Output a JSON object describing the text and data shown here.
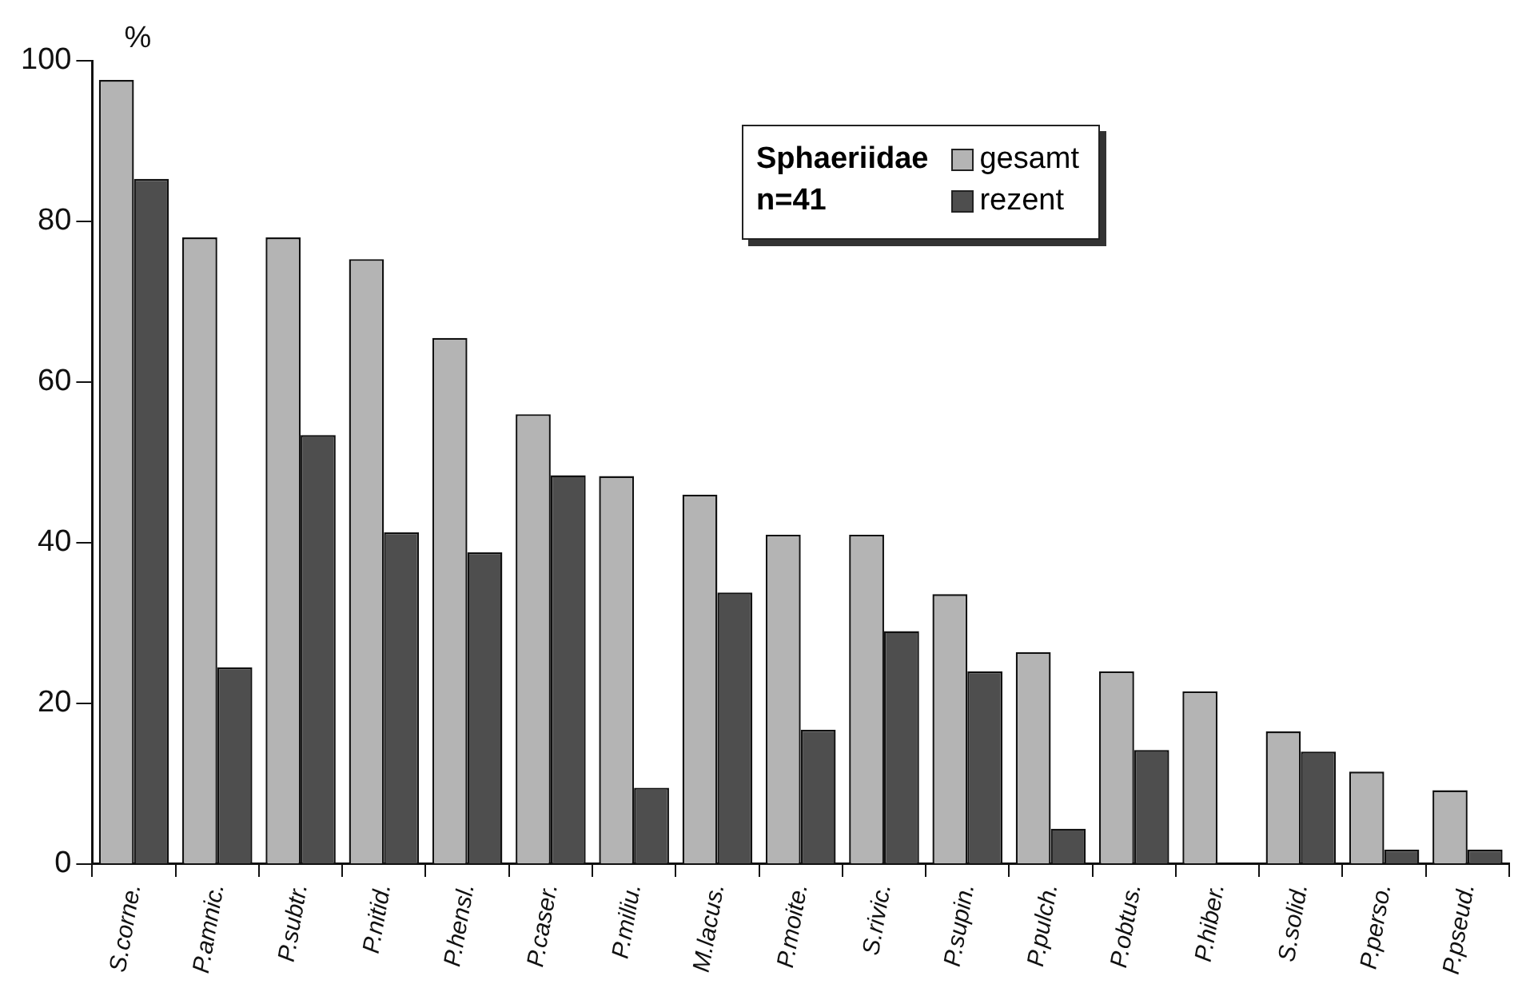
{
  "chart_data": {
    "type": "bar",
    "ylabel": "%",
    "legend_title": "Sphaeriidae\nn=41",
    "categories": [
      "S.corne.",
      "P.amnic.",
      "P.subtr.",
      "P.nitid.",
      "P.hensl.",
      "P.caser.",
      "P.miliu.",
      "M.lacus.",
      "P.moite.",
      "S.rivic.",
      "P.supin.",
      "P.pulch.",
      "P.obtus.",
      "P.hiber.",
      "S.solid.",
      "P.perso.",
      "P.pseud."
    ],
    "series": [
      {
        "name": "gesamt",
        "color": "#b4b4b4",
        "values": [
          97.6,
          78,
          78,
          75.3,
          65.5,
          56,
          48.3,
          46,
          41,
          41,
          33.6,
          26.4,
          24,
          21.5,
          16.5,
          11.5,
          9.2
        ]
      },
      {
        "name": "rezent",
        "color": "#4e4e4e",
        "values": [
          85.3,
          24.5,
          53.4,
          41.3,
          38.8,
          48.4,
          9.5,
          33.8,
          16.7,
          29,
          24,
          4.4,
          14.2,
          0,
          14,
          1.8,
          1.8
        ]
      }
    ],
    "ylim": [
      0,
      100
    ],
    "yticks": [
      0,
      20,
      40,
      60,
      80,
      100
    ],
    "grid": false,
    "legend": "top right"
  }
}
